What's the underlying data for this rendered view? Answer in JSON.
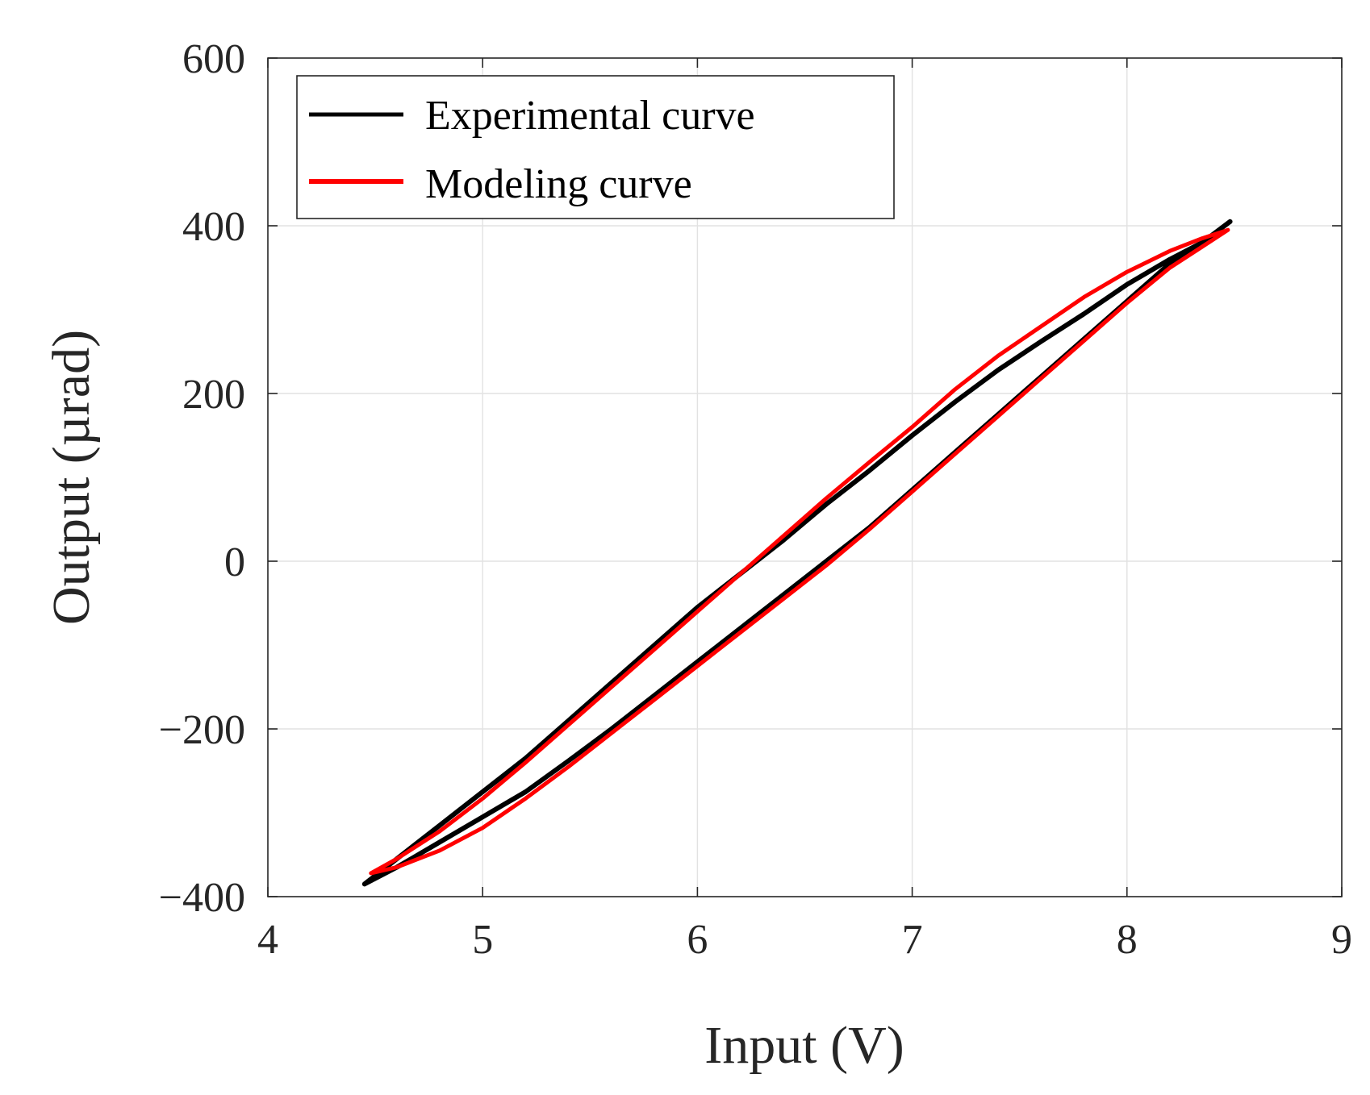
{
  "chart_data": {
    "type": "line",
    "title": "",
    "xlabel": "Input (V)",
    "ylabel": "Output (µrad)",
    "xlim": [
      4,
      9
    ],
    "ylim": [
      -400,
      600
    ],
    "x_ticks": [
      4,
      5,
      6,
      7,
      8,
      9
    ],
    "y_ticks": [
      600,
      400,
      200,
      0,
      -200,
      -400
    ],
    "x_tick_labels": [
      "4",
      "5",
      "6",
      "7",
      "8",
      "9"
    ],
    "y_tick_labels": [
      "600",
      "400",
      "200",
      "0",
      "−200",
      "−400"
    ],
    "grid": true,
    "legend_position": "top-left",
    "series": [
      {
        "name": "Experimental curve",
        "color": "#000000",
        "x": [
          4.45,
          4.6,
          4.8,
          5.0,
          5.2,
          5.4,
          5.6,
          5.8,
          6.0,
          6.2,
          6.4,
          6.6,
          6.8,
          7.0,
          7.2,
          7.4,
          7.6,
          7.8,
          8.0,
          8.2,
          8.35,
          8.48,
          8.35,
          8.2,
          8.0,
          7.8,
          7.6,
          7.4,
          7.2,
          7.0,
          6.8,
          6.6,
          6.4,
          6.2,
          6.0,
          5.8,
          5.6,
          5.4,
          5.2,
          5.0,
          4.8,
          4.6,
          4.45
        ],
        "y": [
          -385,
          -365,
          -335,
          -305,
          -275,
          -238,
          -200,
          -160,
          -120,
          -80,
          -40,
          0,
          40,
          85,
          130,
          175,
          220,
          265,
          310,
          355,
          380,
          405,
          380,
          360,
          330,
          295,
          262,
          228,
          190,
          150,
          108,
          68,
          25,
          -15,
          -55,
          -100,
          -145,
          -190,
          -235,
          -275,
          -315,
          -355,
          -385
        ]
      },
      {
        "name": "Modeling curve",
        "color": "#ff0000",
        "x": [
          4.48,
          4.6,
          4.8,
          5.0,
          5.2,
          5.4,
          5.6,
          5.8,
          6.0,
          6.2,
          6.4,
          6.6,
          6.8,
          7.0,
          7.2,
          7.4,
          7.6,
          7.8,
          8.0,
          8.2,
          8.35,
          8.47,
          8.35,
          8.2,
          8.0,
          7.8,
          7.6,
          7.4,
          7.2,
          7.0,
          6.8,
          6.6,
          6.4,
          6.2,
          6.0,
          5.8,
          5.6,
          5.4,
          5.2,
          5.0,
          4.8,
          4.6,
          4.48
        ],
        "y": [
          -372,
          -365,
          -345,
          -318,
          -283,
          -245,
          -205,
          -165,
          -125,
          -85,
          -45,
          -5,
          38,
          83,
          128,
          173,
          218,
          263,
          308,
          350,
          375,
          395,
          385,
          370,
          345,
          315,
          280,
          245,
          205,
          160,
          118,
          75,
          30,
          -15,
          -60,
          -105,
          -150,
          -195,
          -240,
          -283,
          -322,
          -355,
          -372
        ]
      }
    ]
  }
}
